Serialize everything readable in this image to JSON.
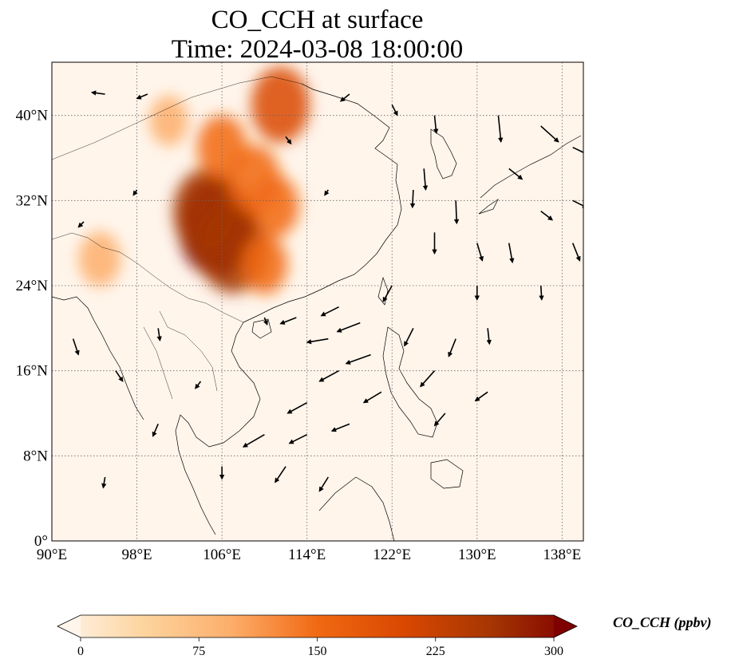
{
  "title": {
    "line1": "CO_CCH at surface",
    "line2": "Time: 2024-03-08 18:00:00"
  },
  "map": {
    "extent": {
      "lon": [
        90,
        140
      ],
      "lat": [
        0,
        45
      ]
    },
    "lat_ticks": [
      {
        "value": 0,
        "label": "0°"
      },
      {
        "value": 8,
        "label": "8°N"
      },
      {
        "value": 16,
        "label": "16°N"
      },
      {
        "value": 24,
        "label": "24°N"
      },
      {
        "value": 32,
        "label": "32°N"
      },
      {
        "value": 40,
        "label": "40°N"
      }
    ],
    "lon_ticks": [
      {
        "value": 90,
        "label": "90°E"
      },
      {
        "value": 98,
        "label": "98°E"
      },
      {
        "value": 106,
        "label": "106°E"
      },
      {
        "value": 114,
        "label": "114°E"
      },
      {
        "value": 122,
        "label": "122°E"
      },
      {
        "value": 130,
        "label": "130°E"
      },
      {
        "value": 138,
        "label": "138°E"
      }
    ],
    "gridlines": true,
    "colormap": [
      "#fff5eb",
      "#fdd49e",
      "#fdae6b",
      "#f16913",
      "#d94801",
      "#a63603",
      "#7f0000"
    ],
    "plumes": [
      {
        "lon": 105.5,
        "lat": 29.5,
        "value": 300
      },
      {
        "lon": 107.0,
        "lat": 27.5,
        "value": 260
      },
      {
        "lon": 104.5,
        "lat": 31.0,
        "value": 240
      },
      {
        "lon": 109.0,
        "lat": 34.0,
        "value": 170
      },
      {
        "lon": 111.5,
        "lat": 41.0,
        "value": 200
      },
      {
        "lon": 106.0,
        "lat": 37.0,
        "value": 150
      },
      {
        "lon": 111.0,
        "lat": 31.5,
        "value": 140
      },
      {
        "lon": 110.0,
        "lat": 26.0,
        "value": 130
      },
      {
        "lon": 94.5,
        "lat": 26.5,
        "value": 110
      },
      {
        "lon": 101.0,
        "lat": 39.5,
        "value": 90
      }
    ],
    "wind_vectors": [
      {
        "lon": 95,
        "lat": 42,
        "u": -1.5,
        "v": 0.2
      },
      {
        "lon": 99,
        "lat": 42,
        "u": -1.2,
        "v": -0.5
      },
      {
        "lon": 118,
        "lat": 42,
        "u": -1.0,
        "v": -0.8
      },
      {
        "lon": 122,
        "lat": 41,
        "u": 0.6,
        "v": -1.2
      },
      {
        "lon": 126,
        "lat": 40,
        "u": 0.2,
        "v": -2.0
      },
      {
        "lon": 132,
        "lat": 40,
        "u": 0.3,
        "v": -3.0
      },
      {
        "lon": 136,
        "lat": 39,
        "u": 2.0,
        "v": -1.8
      },
      {
        "lon": 139,
        "lat": 37,
        "u": 2.5,
        "v": -1.2
      },
      {
        "lon": 125,
        "lat": 35,
        "u": 0.2,
        "v": -2.4
      },
      {
        "lon": 133,
        "lat": 35,
        "u": 1.5,
        "v": -1.2
      },
      {
        "lon": 139,
        "lat": 32,
        "u": 1.6,
        "v": -0.8
      },
      {
        "lon": 124,
        "lat": 33,
        "u": -0.1,
        "v": -2.0
      },
      {
        "lon": 128,
        "lat": 32,
        "u": 0.1,
        "v": -2.6
      },
      {
        "lon": 136,
        "lat": 31,
        "u": 1.3,
        "v": -1.0
      },
      {
        "lon": 139,
        "lat": 28,
        "u": 0.8,
        "v": -2.0
      },
      {
        "lon": 133,
        "lat": 28,
        "u": 0.4,
        "v": -2.2
      },
      {
        "lon": 126,
        "lat": 29,
        "u": 0.0,
        "v": -2.4
      },
      {
        "lon": 130,
        "lat": 28,
        "u": 0.6,
        "v": -2.0
      },
      {
        "lon": 136,
        "lat": 24,
        "u": 0.1,
        "v": -1.6
      },
      {
        "lon": 130,
        "lat": 24,
        "u": 0.0,
        "v": -1.6
      },
      {
        "lon": 122,
        "lat": 24,
        "u": -1.0,
        "v": -1.8
      },
      {
        "lon": 117,
        "lat": 22,
        "u": -2.0,
        "v": -1.0
      },
      {
        "lon": 119,
        "lat": 20.5,
        "u": -2.6,
        "v": -1.0
      },
      {
        "lon": 113,
        "lat": 21,
        "u": -1.8,
        "v": -0.7
      },
      {
        "lon": 116,
        "lat": 19,
        "u": -2.4,
        "v": -0.4
      },
      {
        "lon": 120,
        "lat": 17.5,
        "u": -2.8,
        "v": -1.0
      },
      {
        "lon": 124,
        "lat": 20,
        "u": -1.0,
        "v": -2.0
      },
      {
        "lon": 128,
        "lat": 19,
        "u": -0.8,
        "v": -2.0
      },
      {
        "lon": 131,
        "lat": 20,
        "u": 0.2,
        "v": -1.8
      },
      {
        "lon": 126,
        "lat": 16,
        "u": -1.6,
        "v": -1.8
      },
      {
        "lon": 117,
        "lat": 16,
        "u": -2.2,
        "v": -1.2
      },
      {
        "lon": 121,
        "lat": 14,
        "u": -2.0,
        "v": -1.2
      },
      {
        "lon": 114,
        "lat": 13,
        "u": -2.2,
        "v": -1.2
      },
      {
        "lon": 110,
        "lat": 10,
        "u": -2.4,
        "v": -1.4
      },
      {
        "lon": 114,
        "lat": 10,
        "u": -2.0,
        "v": -1.0
      },
      {
        "lon": 118,
        "lat": 11,
        "u": -2.0,
        "v": -0.8
      },
      {
        "lon": 127,
        "lat": 12,
        "u": -1.2,
        "v": -1.4
      },
      {
        "lon": 131,
        "lat": 14,
        "u": -1.4,
        "v": -1.0
      },
      {
        "lon": 112,
        "lat": 7,
        "u": -1.2,
        "v": -1.8
      },
      {
        "lon": 116,
        "lat": 6,
        "u": -1.0,
        "v": -1.6
      },
      {
        "lon": 106,
        "lat": 7,
        "u": 0.0,
        "v": -1.4
      },
      {
        "lon": 92,
        "lat": 19,
        "u": 0.6,
        "v": -1.8
      },
      {
        "lon": 96,
        "lat": 16,
        "u": 0.8,
        "v": -1.2
      },
      {
        "lon": 100,
        "lat": 20,
        "u": 0.2,
        "v": -1.4
      },
      {
        "lon": 93,
        "lat": 30,
        "u": -0.6,
        "v": -0.6
      },
      {
        "lon": 98,
        "lat": 33,
        "u": -0.4,
        "v": -0.6
      },
      {
        "lon": 112,
        "lat": 38,
        "u": 0.6,
        "v": -0.8
      },
      {
        "lon": 116,
        "lat": 33,
        "u": -0.4,
        "v": -0.6
      },
      {
        "lon": 110,
        "lat": 21,
        "u": 0.3,
        "v": -0.8
      },
      {
        "lon": 104,
        "lat": 15,
        "u": -0.6,
        "v": -0.8
      },
      {
        "lon": 100,
        "lat": 11,
        "u": -0.6,
        "v": -1.4
      },
      {
        "lon": 95,
        "lat": 6,
        "u": -0.2,
        "v": -1.2
      }
    ]
  },
  "colorbar": {
    "title": "CO_CCH (ppbv)",
    "min": 0,
    "max": 300,
    "ticks": [
      "0",
      "75",
      "150",
      "225",
      "300"
    ],
    "extend": "both"
  }
}
